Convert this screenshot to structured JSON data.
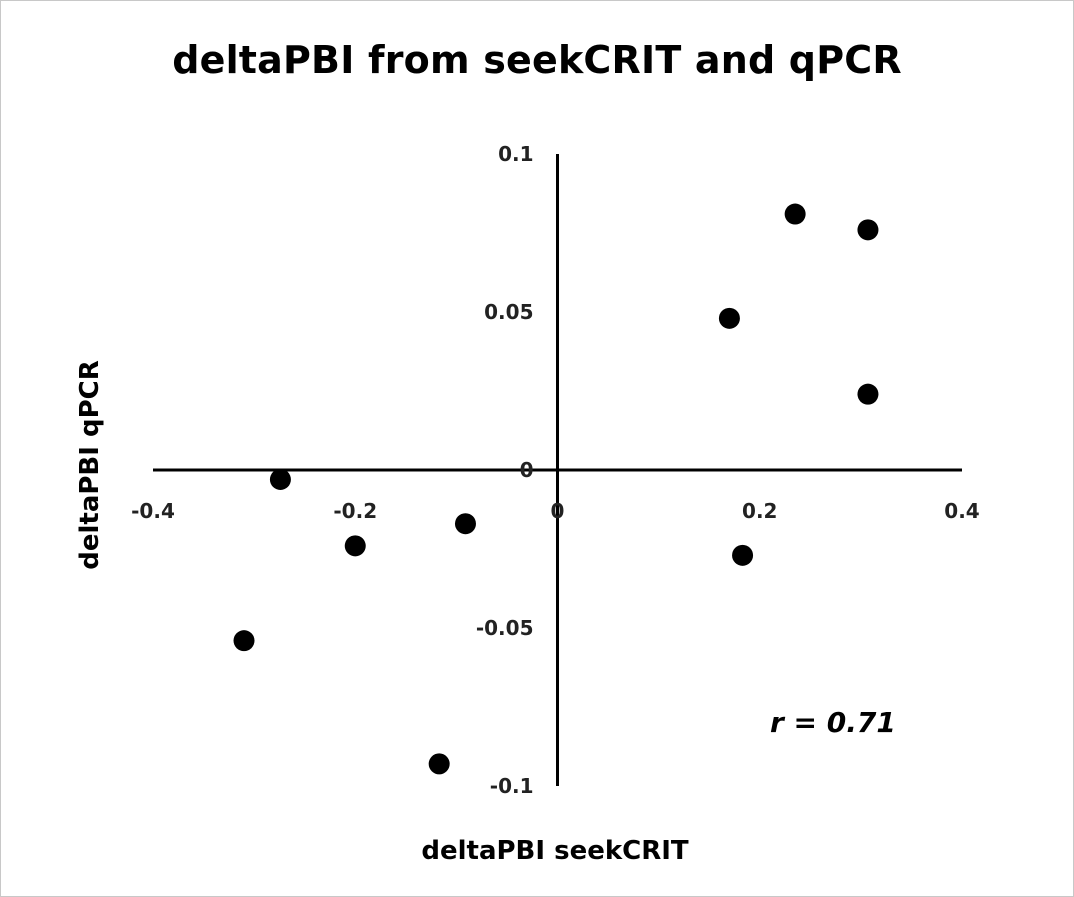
{
  "chart_data": {
    "type": "scatter",
    "title": "deltaPBI from seekCRIT and qPCR",
    "xlabel": "deltaPBI seekCRIT",
    "ylabel": "deltaPBI qPCR",
    "xlim": [
      -0.4,
      0.4
    ],
    "ylim": [
      -0.1,
      0.1
    ],
    "x_ticks": [
      -0.4,
      -0.2,
      0,
      0.2,
      0.4
    ],
    "x_tick_labels": [
      "-0.4",
      "-0.2",
      "0",
      "0.2",
      "0.4"
    ],
    "y_ticks": [
      -0.1,
      -0.05,
      0,
      0.05,
      0.1
    ],
    "y_tick_labels": [
      "-0.1",
      "-0.05",
      "0",
      "0.05",
      "0.1"
    ],
    "grid": false,
    "legend": "none",
    "annotation": "r = 0.71",
    "marker_color": "#000000",
    "points": [
      {
        "x": -0.274,
        "y": -0.003
      },
      {
        "x": -0.2,
        "y": -0.024
      },
      {
        "x": -0.091,
        "y": -0.017
      },
      {
        "x": -0.31,
        "y": -0.054
      },
      {
        "x": -0.117,
        "y": -0.093
      },
      {
        "x": 0.17,
        "y": 0.048
      },
      {
        "x": 0.235,
        "y": 0.081
      },
      {
        "x": 0.307,
        "y": 0.076
      },
      {
        "x": 0.307,
        "y": 0.024
      },
      {
        "x": 0.183,
        "y": -0.027
      }
    ]
  }
}
